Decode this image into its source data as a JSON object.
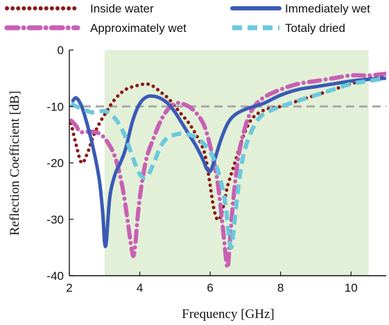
{
  "chart_data": {
    "type": "line",
    "title": "",
    "xlabel": "Frequency [GHz]",
    "ylabel": "Reflection Coefficient [dB]",
    "xlim": [
      2,
      11
    ],
    "ylim": [
      -40,
      0
    ],
    "xticks": [
      "2",
      "4",
      "6",
      "8",
      "10"
    ],
    "yticks": [
      "0",
      "-10",
      "-20",
      "-30",
      "-40"
    ],
    "grid": false,
    "legend_position": "top",
    "shaded_band": [
      3,
      10.5
    ],
    "shaded_color": "#e3f0d8",
    "reference_line": -10,
    "reference_color": "#a8a8a8",
    "series": [
      {
        "name": "Inside water",
        "color": "#8b1a1a",
        "style": "dotted",
        "x": [
          2.05,
          2.2,
          2.35,
          2.5,
          2.7,
          2.9,
          3.05,
          3.2,
          3.4,
          3.6,
          3.8,
          4.0,
          4.2,
          4.4,
          4.6,
          4.8,
          5.0,
          5.2,
          5.4,
          5.6,
          5.8,
          5.9,
          6.0,
          6.1,
          6.2,
          6.3,
          6.4,
          6.5,
          6.7,
          6.9,
          7.1,
          7.3,
          7.6,
          8.0,
          8.5,
          9.0,
          9.5,
          10.0,
          10.5,
          11.0
        ],
        "y": [
          -13,
          -17,
          -20,
          -18.5,
          -15,
          -12.5,
          -11,
          -9.5,
          -8,
          -7,
          -6.5,
          -6.2,
          -6,
          -6.5,
          -7.5,
          -8.5,
          -10,
          -11.5,
          -13,
          -15,
          -17.5,
          -20,
          -24,
          -28,
          -30,
          -29.5,
          -27,
          -24,
          -20,
          -16,
          -13,
          -11.5,
          -10.5,
          -10,
          -9,
          -8,
          -7,
          -6,
          -5,
          -4.5
        ]
      },
      {
        "name": "Approximately wet",
        "color": "#c860b4",
        "style": "dashdot",
        "x": [
          2.05,
          2.2,
          2.3,
          2.5,
          2.7,
          2.9,
          3.1,
          3.3,
          3.5,
          3.65,
          3.75,
          3.82,
          3.88,
          3.95,
          4.05,
          4.2,
          4.4,
          4.6,
          4.8,
          5.0,
          5.2,
          5.5,
          5.8,
          6.0,
          6.2,
          6.35,
          6.45,
          6.5,
          6.55,
          6.65,
          6.8,
          7.0,
          7.2,
          7.5,
          8.0,
          8.5,
          9.0,
          9.5,
          10.0,
          10.5,
          11.0
        ],
        "y": [
          -12.5,
          -13.5,
          -14.5,
          -14.5,
          -14.5,
          -15,
          -16.5,
          -19,
          -24,
          -30,
          -34.5,
          -36.5,
          -34,
          -29,
          -24,
          -19,
          -15.5,
          -12.5,
          -10.5,
          -9.5,
          -9.5,
          -10.5,
          -13,
          -17,
          -23,
          -31,
          -37,
          -38.5,
          -35,
          -27,
          -19,
          -13.5,
          -10.5,
          -8.5,
          -7,
          -6,
          -5.5,
          -5,
          -4.5,
          -4.5,
          -4.2
        ]
      },
      {
        "name": "Immediately wet",
        "color": "#3a5ab5",
        "style": "solid",
        "x": [
          2.1,
          2.2,
          2.35,
          2.5,
          2.7,
          2.85,
          2.95,
          3.0,
          3.05,
          3.15,
          3.3,
          3.45,
          3.6,
          3.8,
          4.0,
          4.2,
          4.4,
          4.6,
          4.8,
          5.0,
          5.2,
          5.4,
          5.6,
          5.8,
          5.9,
          6.0,
          6.1,
          6.3,
          6.5,
          6.7,
          7.0,
          7.5,
          8.0,
          8.5,
          9.0,
          9.5,
          10.0,
          10.5,
          11.0
        ],
        "y": [
          -9,
          -8.5,
          -10,
          -13,
          -18,
          -23,
          -29,
          -34,
          -34,
          -26,
          -22,
          -20,
          -17.5,
          -12.5,
          -9.5,
          -8.3,
          -8.2,
          -8.6,
          -9.5,
          -11,
          -13,
          -15,
          -17,
          -19.5,
          -21,
          -21.5,
          -20,
          -16,
          -13,
          -11.5,
          -10.5,
          -9.5,
          -8,
          -7,
          -6.5,
          -6,
          -5.5,
          -5.2,
          -5
        ]
      },
      {
        "name": "Totaly dried",
        "color": "#6cc8dc",
        "style": "dashed",
        "x": [
          2.05,
          2.2,
          2.4,
          2.6,
          2.8,
          3.0,
          3.2,
          3.4,
          3.6,
          3.8,
          4.0,
          4.2,
          4.4,
          4.6,
          4.8,
          5.0,
          5.2,
          5.4,
          5.6,
          5.8,
          6.0,
          6.2,
          6.4,
          6.5,
          6.55,
          6.6,
          6.65,
          6.75,
          6.9,
          7.1,
          7.4,
          7.8,
          8.5,
          9.0,
          9.5,
          10.0,
          10.5,
          11.0
        ],
        "y": [
          -9.5,
          -10,
          -10.5,
          -11,
          -11,
          -10.8,
          -11.5,
          -13,
          -15.5,
          -19,
          -22,
          -22.5,
          -20,
          -17,
          -15.5,
          -15,
          -14.8,
          -15,
          -15.5,
          -16.5,
          -18,
          -21,
          -26,
          -31,
          -34,
          -35,
          -33,
          -27,
          -20,
          -15.5,
          -12,
          -10.5,
          -9,
          -8,
          -7,
          -6,
          -5.5,
          -5
        ]
      }
    ]
  }
}
